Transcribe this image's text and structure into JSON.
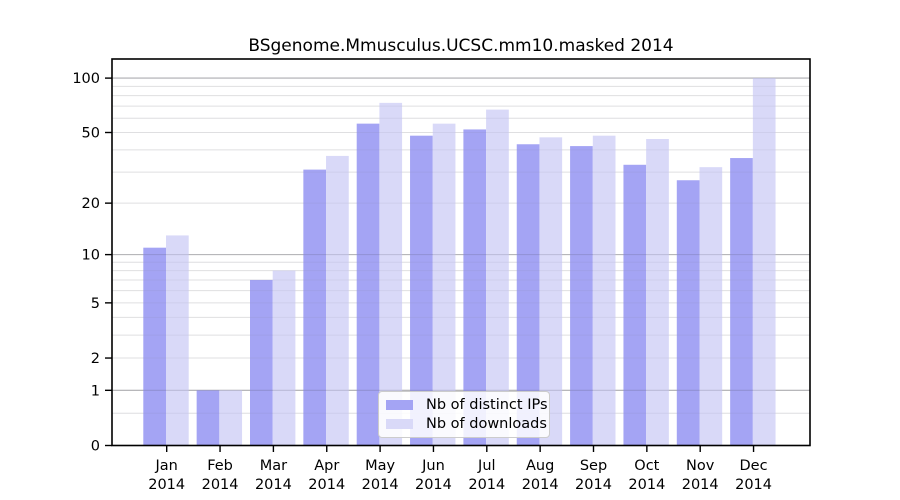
{
  "chart_data": {
    "type": "bar",
    "title": "BSgenome.Mmusculus.UCSC.mm10.masked 2014",
    "categories": [
      "Jan",
      "Feb",
      "Mar",
      "Apr",
      "May",
      "Jun",
      "Jul",
      "Aug",
      "Sep",
      "Oct",
      "Nov",
      "Dec"
    ],
    "year_label": "2014",
    "series": [
      {
        "name": "Nb of distinct IPs",
        "color": "#a4a4f4",
        "values": [
          11,
          1,
          7,
          31,
          56,
          48,
          52,
          43,
          42,
          33,
          27,
          36
        ]
      },
      {
        "name": "Nb of downloads",
        "color": "#d9d9f8",
        "values": [
          13,
          1,
          8,
          37,
          73,
          56,
          67,
          47,
          48,
          46,
          32,
          100
        ]
      }
    ],
    "y_ticks": [
      0,
      1,
      2,
      5,
      10,
      20,
      50,
      100
    ],
    "y_scale": "log10(1+x)",
    "ylim": [
      0,
      110
    ],
    "xlabel": "",
    "ylabel": "",
    "grid": true,
    "legend_position": "lower center",
    "colors": {
      "major_gridline": "#c8c8c8",
      "minor_gridline": "#ebebeb",
      "frame": "#000000",
      "text": "#000000"
    }
  }
}
